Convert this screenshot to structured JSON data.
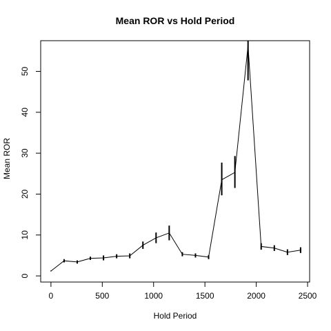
{
  "chart_data": {
    "type": "line",
    "title": "Mean ROR vs Hold Period",
    "xlabel": "Hold Period",
    "ylabel": "Mean ROR",
    "xlim": [
      -100,
      2520
    ],
    "ylim": [
      -1.5,
      57.5
    ],
    "xticks": [
      0,
      500,
      1000,
      1500,
      2000,
      2500
    ],
    "yticks": [
      0,
      10,
      20,
      30,
      40,
      50
    ],
    "grid": false,
    "legend": "none",
    "series": [
      {
        "x": [
          0,
          128,
          256,
          384,
          512,
          640,
          768,
          896,
          1024,
          1152,
          1280,
          1408,
          1536,
          1664,
          1792,
          1920,
          2048,
          2176,
          2304,
          2432
        ],
        "y": [
          1.2,
          3.7,
          3.4,
          4.3,
          4.4,
          4.8,
          4.9,
          7.5,
          9.3,
          10.5,
          5.3,
          5.0,
          4.6,
          23.5,
          25.3,
          56.3,
          7.2,
          6.8,
          5.8,
          6.3
        ],
        "err_low": [
          null,
          3.3,
          3.0,
          3.9,
          3.8,
          4.3,
          4.3,
          6.6,
          8.0,
          8.7,
          4.8,
          4.5,
          4.1,
          19.7,
          21.5,
          47.8,
          6.4,
          6.1,
          5.1,
          5.6
        ],
        "err_high": [
          null,
          4.1,
          3.8,
          4.7,
          5.0,
          5.3,
          5.5,
          8.4,
          10.6,
          12.3,
          5.8,
          5.5,
          5.1,
          27.7,
          29.3,
          57.5,
          8.0,
          7.5,
          6.5,
          7.0
        ]
      }
    ]
  }
}
